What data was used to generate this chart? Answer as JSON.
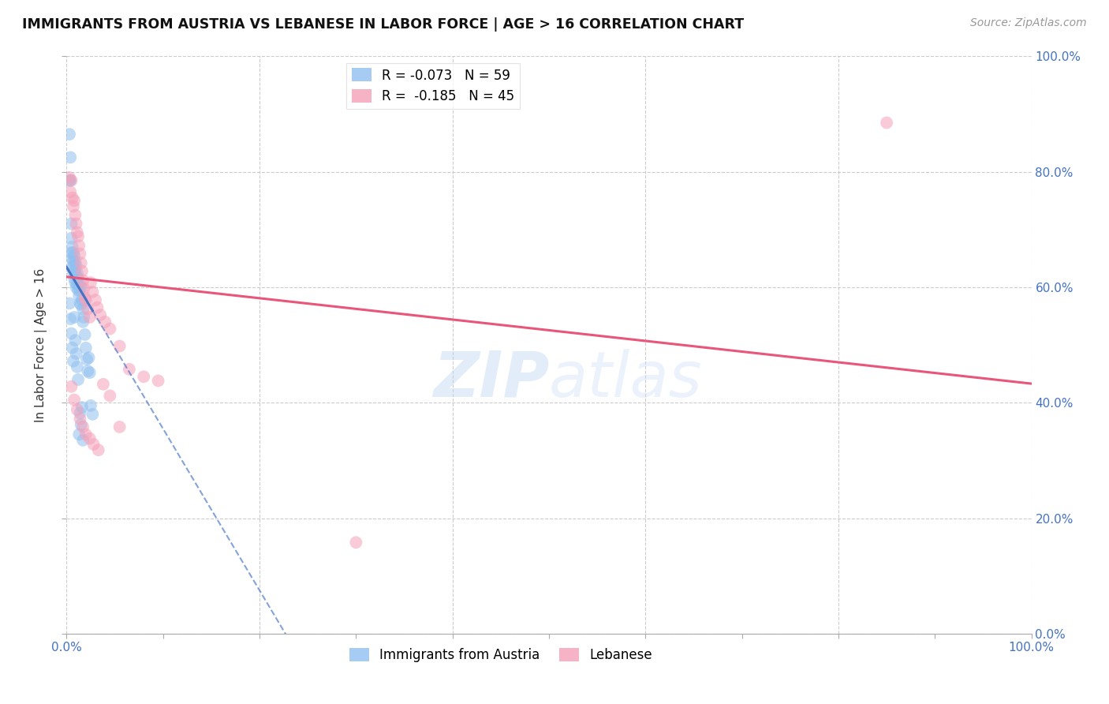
{
  "title": "IMMIGRANTS FROM AUSTRIA VS LEBANESE IN LABOR FORCE | AGE > 16 CORRELATION CHART",
  "source": "Source: ZipAtlas.com",
  "ylabel": "In Labor Force | Age > 16",
  "xlim": [
    0.0,
    1.0
  ],
  "ylim": [
    0.0,
    1.0
  ],
  "xticks": [
    0.0,
    0.1,
    0.2,
    0.3,
    0.4,
    0.5,
    0.6,
    0.7,
    0.8,
    0.9,
    1.0
  ],
  "yticks": [
    0.0,
    0.2,
    0.4,
    0.6,
    0.8,
    1.0
  ],
  "austria_R": "-0.073",
  "austria_N": "59",
  "lebanese_R": "-0.185",
  "lebanese_N": "45",
  "austria_color": "#90C0F0",
  "lebanese_color": "#F5A0B8",
  "austria_line_color": "#4472C4",
  "lebanese_line_color": "#E8567A",
  "watermark_zip": "ZIP",
  "watermark_atlas": "atlas",
  "grid_color": "#CCCCCC",
  "bg_color": "#FFFFFF",
  "austria_points_x": [
    0.003,
    0.003,
    0.004,
    0.004,
    0.005,
    0.005,
    0.005,
    0.006,
    0.006,
    0.006,
    0.007,
    0.007,
    0.007,
    0.008,
    0.008,
    0.008,
    0.009,
    0.009,
    0.009,
    0.01,
    0.01,
    0.01,
    0.011,
    0.011,
    0.012,
    0.012,
    0.013,
    0.013,
    0.014,
    0.014,
    0.015,
    0.015,
    0.016,
    0.017,
    0.017,
    0.018,
    0.019,
    0.02,
    0.021,
    0.022,
    0.023,
    0.024,
    0.025,
    0.027,
    0.003,
    0.004,
    0.005,
    0.006,
    0.007,
    0.008,
    0.009,
    0.01,
    0.011,
    0.012,
    0.013,
    0.014,
    0.015,
    0.016,
    0.017
  ],
  "austria_points_y": [
    0.865,
    0.785,
    0.825,
    0.785,
    0.71,
    0.685,
    0.66,
    0.67,
    0.65,
    0.635,
    0.66,
    0.645,
    0.625,
    0.655,
    0.638,
    0.615,
    0.645,
    0.628,
    0.608,
    0.638,
    0.62,
    0.6,
    0.625,
    0.605,
    0.615,
    0.595,
    0.605,
    0.585,
    0.595,
    0.572,
    0.6,
    0.57,
    0.578,
    0.562,
    0.54,
    0.548,
    0.518,
    0.495,
    0.475,
    0.455,
    0.478,
    0.452,
    0.395,
    0.38,
    0.572,
    0.545,
    0.52,
    0.495,
    0.472,
    0.548,
    0.508,
    0.485,
    0.462,
    0.44,
    0.345,
    0.382,
    0.362,
    0.392,
    0.335
  ],
  "lebanese_points_x": [
    0.003,
    0.004,
    0.005,
    0.006,
    0.007,
    0.008,
    0.009,
    0.01,
    0.011,
    0.012,
    0.013,
    0.014,
    0.015,
    0.016,
    0.017,
    0.018,
    0.019,
    0.02,
    0.022,
    0.024,
    0.025,
    0.027,
    0.03,
    0.032,
    0.035,
    0.04,
    0.045,
    0.055,
    0.065,
    0.08,
    0.095,
    0.005,
    0.008,
    0.011,
    0.014,
    0.017,
    0.02,
    0.024,
    0.028,
    0.033,
    0.038,
    0.045,
    0.055,
    0.3,
    0.85
  ],
  "lebanese_points_y": [
    0.79,
    0.765,
    0.785,
    0.755,
    0.74,
    0.75,
    0.725,
    0.71,
    0.695,
    0.688,
    0.672,
    0.658,
    0.642,
    0.628,
    0.612,
    0.598,
    0.582,
    0.578,
    0.562,
    0.548,
    0.608,
    0.592,
    0.578,
    0.565,
    0.552,
    0.54,
    0.528,
    0.498,
    0.458,
    0.445,
    0.438,
    0.428,
    0.405,
    0.388,
    0.372,
    0.358,
    0.345,
    0.338,
    0.328,
    0.318,
    0.432,
    0.412,
    0.358,
    0.158,
    0.885
  ],
  "austria_line_x_solid_end": 0.027,
  "lebanese_line_x_end": 0.95,
  "austria_line_intercept": 0.635,
  "austria_line_slope": -2.8,
  "lebanese_line_intercept": 0.618,
  "lebanese_line_slope": -0.185
}
